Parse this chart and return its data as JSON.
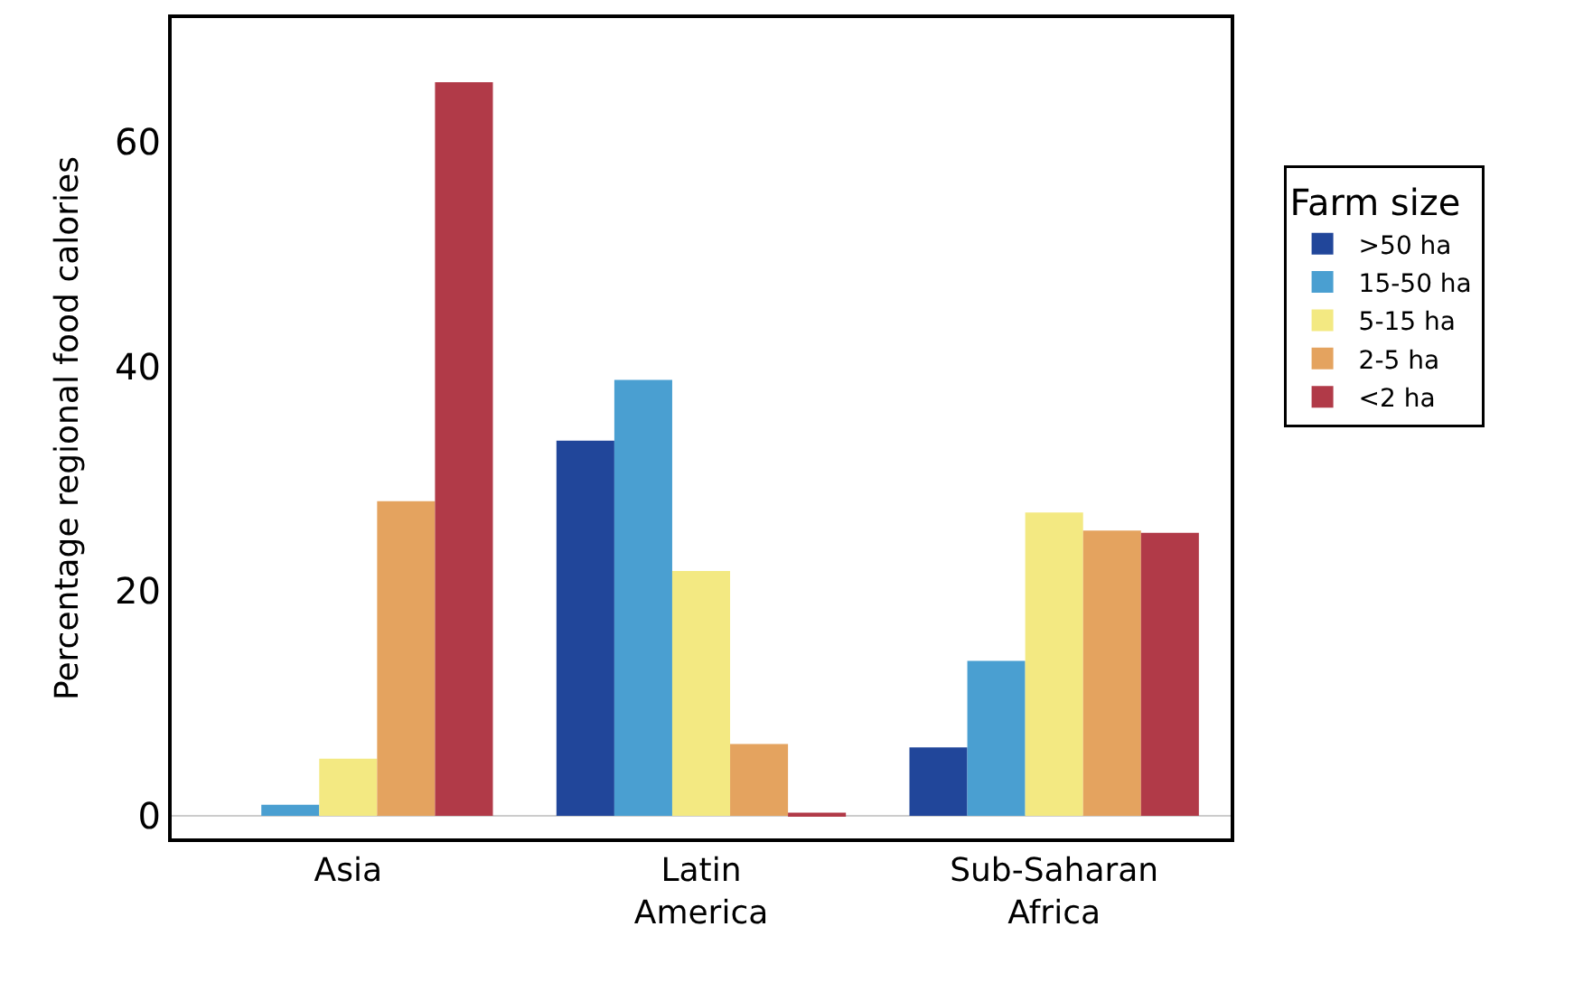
{
  "chart_data": {
    "type": "bar",
    "ylabel": "Percentage regional food calories",
    "legend_title": "Farm size",
    "categories": [
      "Asia",
      "Latin America",
      "Sub-Saharan Africa"
    ],
    "series": [
      {
        "name": ">50 ha",
        "color": "#21469a",
        "values": [
          0,
          33.4,
          6.1
        ]
      },
      {
        "name": "15-50 ha",
        "color": "#4a9fd1",
        "values": [
          1,
          38.8,
          13.8
        ]
      },
      {
        "name": "5-15 ha",
        "color": "#f3e982",
        "values": [
          5.1,
          21.8,
          27
        ]
      },
      {
        "name": "2-5 ha",
        "color": "#e4a35f",
        "values": [
          28,
          6.4,
          25.4
        ]
      },
      {
        "name": "<2 ha",
        "color": "#b13a48",
        "values": [
          65.3,
          0.3,
          25.2
        ]
      }
    ],
    "ylim": [
      -2,
      71
    ],
    "yticks": [
      0,
      20,
      40,
      60
    ],
    "grid": false,
    "ref_lines": [
      {
        "axis": "y",
        "value": 0,
        "color": "#cccccc"
      }
    ],
    "legend": "right"
  }
}
